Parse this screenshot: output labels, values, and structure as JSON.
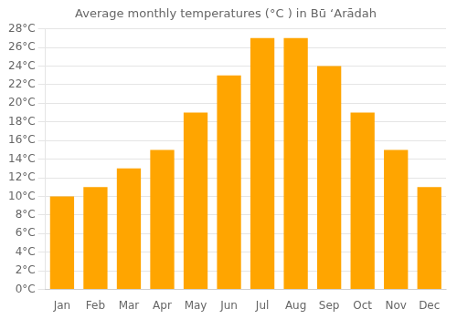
{
  "chart_data": {
    "type": "bar",
    "title": "Average monthly temperatures (°C ) in Bū ‘Arādah",
    "categories": [
      "Jan",
      "Feb",
      "Mar",
      "Apr",
      "May",
      "Jun",
      "Jul",
      "Aug",
      "Sep",
      "Oct",
      "Nov",
      "Dec"
    ],
    "values": [
      10,
      11,
      13,
      15,
      19,
      23,
      27,
      27,
      24,
      19,
      15,
      11
    ],
    "color": "#FFA500",
    "ylim": [
      0,
      28
    ],
    "yticks": [
      {
        "value": 0,
        "label": "0°C"
      },
      {
        "value": 2,
        "label": "2°C"
      },
      {
        "value": 4,
        "label": "4°C"
      },
      {
        "value": 6,
        "label": "6°C"
      },
      {
        "value": 8,
        "label": "8°C"
      },
      {
        "value": 10,
        "label": "10°C"
      },
      {
        "value": 12,
        "label": "12°C"
      },
      {
        "value": 14,
        "label": "14°C"
      },
      {
        "value": 16,
        "label": "16°C"
      },
      {
        "value": 18,
        "label": "18°C"
      },
      {
        "value": 20,
        "label": "20°C"
      },
      {
        "value": 22,
        "label": "22°C"
      },
      {
        "value": 24,
        "label": "24°C"
      },
      {
        "value": 26,
        "label": "26°C"
      },
      {
        "value": 28,
        "label": "28°C"
      }
    ],
    "grid": true
  }
}
